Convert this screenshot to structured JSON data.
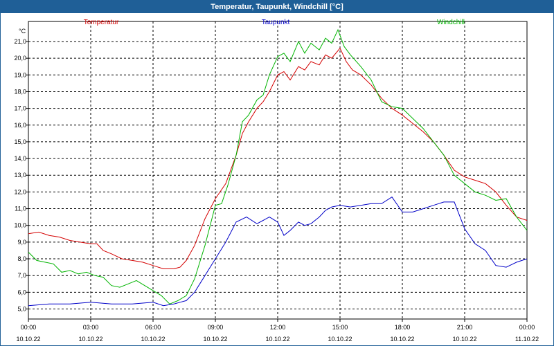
{
  "title": "Temperatur, Taupunkt, Windchill [°C]",
  "chart_data": {
    "type": "line",
    "title": "Temperatur, Taupunkt, Windchill [°C]",
    "unit": "°C",
    "ylim": [
      4.4,
      22.2
    ],
    "xlim": [
      0,
      24
    ],
    "y_ticks": [
      5.0,
      6.0,
      7.0,
      8.0,
      9.0,
      10.0,
      11.0,
      12.0,
      13.0,
      14.0,
      15.0,
      16.0,
      17.0,
      18.0,
      19.0,
      20.0,
      21.0
    ],
    "y_tick_labels": [
      "5,0",
      "6,0",
      "7,0",
      "8,0",
      "9,0",
      "10,0",
      "11,0",
      "12,0",
      "13,0",
      "14,0",
      "15,0",
      "16,0",
      "17,0",
      "18,0",
      "19,0",
      "20,0",
      "21,0"
    ],
    "x_ticks": [
      {
        "time": "00:00",
        "date": "10.10.22"
      },
      {
        "time": "03:00",
        "date": "10.10.22"
      },
      {
        "time": "06:00",
        "date": "10.10.22"
      },
      {
        "time": "09:00",
        "date": "10.10.22"
      },
      {
        "time": "12:00",
        "date": "10.10.22"
      },
      {
        "time": "15:00",
        "date": "10.10.22"
      },
      {
        "time": "18:00",
        "date": "10.10.22"
      },
      {
        "time": "21:00",
        "date": "10.10.22"
      },
      {
        "time": "00:00",
        "date": "11.10.22"
      }
    ],
    "grid": true,
    "legend_position": "top",
    "series": [
      {
        "name": "Temperatur",
        "color": "#d40000",
        "x": [
          0,
          0.5,
          1,
          1.5,
          2,
          2.5,
          3,
          3.3,
          3.6,
          4,
          4.5,
          5,
          5.5,
          6,
          6.5,
          7,
          7.3,
          7.6,
          8,
          8.5,
          9,
          9.5,
          10,
          10.3,
          10.6,
          11,
          11.3,
          11.6,
          12,
          12.3,
          12.6,
          13,
          13.3,
          13.6,
          14,
          14.3,
          14.6,
          15,
          15.3,
          15.6,
          16,
          16.5,
          17,
          17.5,
          18,
          18.5,
          19,
          19.5,
          20,
          20.5,
          21,
          21.5,
          22,
          22.5,
          23,
          23.5,
          24
        ],
        "values": [
          9.5,
          9.6,
          9.4,
          9.3,
          9.1,
          9.0,
          8.9,
          8.9,
          8.5,
          8.3,
          8.0,
          7.9,
          7.8,
          7.6,
          7.4,
          7.4,
          7.5,
          7.9,
          8.8,
          10.4,
          11.6,
          12.5,
          14.2,
          15.5,
          16.2,
          17.0,
          17.4,
          18.0,
          19.0,
          19.2,
          18.7,
          19.5,
          19.3,
          19.8,
          19.6,
          20.2,
          20.0,
          20.6,
          19.8,
          19.3,
          19.0,
          18.4,
          17.6,
          17.0,
          16.6,
          16.1,
          15.6,
          15.0,
          14.2,
          13.3,
          12.9,
          12.7,
          12.5,
          12.0,
          11.2,
          10.5,
          10.3
        ]
      },
      {
        "name": "Taupunkt",
        "color": "#0000c8",
        "x": [
          0,
          1,
          2,
          3,
          4,
          5,
          6,
          6.5,
          7,
          7.3,
          7.6,
          8,
          8.5,
          9,
          9.5,
          10,
          10.5,
          11,
          11.3,
          11.6,
          12,
          12.3,
          12.6,
          13,
          13.3,
          13.6,
          14,
          14.3,
          14.6,
          15,
          15.5,
          16,
          16.5,
          17,
          17.5,
          18,
          18.5,
          19,
          19.5,
          20,
          20.5,
          21,
          21.5,
          22,
          22.5,
          23,
          23.5,
          24
        ],
        "values": [
          5.2,
          5.3,
          5.3,
          5.4,
          5.3,
          5.3,
          5.4,
          5.2,
          5.3,
          5.4,
          5.5,
          6.0,
          7.0,
          8.0,
          9.0,
          10.2,
          10.5,
          10.1,
          10.3,
          10.5,
          10.2,
          9.4,
          9.7,
          10.2,
          10.0,
          10.1,
          10.5,
          10.9,
          11.1,
          11.2,
          11.1,
          11.2,
          11.3,
          11.3,
          11.7,
          10.8,
          10.8,
          11.0,
          11.2,
          11.4,
          11.4,
          9.8,
          8.9,
          8.5,
          7.6,
          7.5,
          7.8,
          8.0
        ]
      },
      {
        "name": "Windchill",
        "color": "#00b400",
        "x": [
          0,
          0.4,
          0.8,
          1.2,
          1.6,
          2,
          2.4,
          2.8,
          3.2,
          3.6,
          4,
          4.4,
          4.8,
          5.2,
          5.6,
          6,
          6.4,
          6.8,
          7.2,
          7.6,
          8,
          8.5,
          9,
          9.3,
          9.6,
          10,
          10.3,
          10.6,
          11,
          11.3,
          11.6,
          12,
          12.3,
          12.6,
          13,
          13.3,
          13.6,
          14,
          14.3,
          14.6,
          14.9,
          15.2,
          15.5,
          16,
          16.5,
          17,
          17.5,
          18,
          18.5,
          19,
          19.5,
          20,
          20.5,
          21,
          21.5,
          22,
          22.5,
          23,
          23.5,
          24
        ],
        "values": [
          8.4,
          7.9,
          7.8,
          7.7,
          7.2,
          7.3,
          7.1,
          7.2,
          7.0,
          6.9,
          6.4,
          6.3,
          6.5,
          6.7,
          6.4,
          6.1,
          5.8,
          5.3,
          5.5,
          5.8,
          6.8,
          8.8,
          11.2,
          11.3,
          12.4,
          14.2,
          16.2,
          16.6,
          17.5,
          17.8,
          19.0,
          20.1,
          20.3,
          19.8,
          21.0,
          20.3,
          20.9,
          20.5,
          21.2,
          20.9,
          21.7,
          20.7,
          20.2,
          19.5,
          18.7,
          17.4,
          17.1,
          17.0,
          16.4,
          15.8,
          15.0,
          14.2,
          13.0,
          12.5,
          12.0,
          11.8,
          11.5,
          11.6,
          10.5,
          9.7
        ]
      }
    ]
  }
}
